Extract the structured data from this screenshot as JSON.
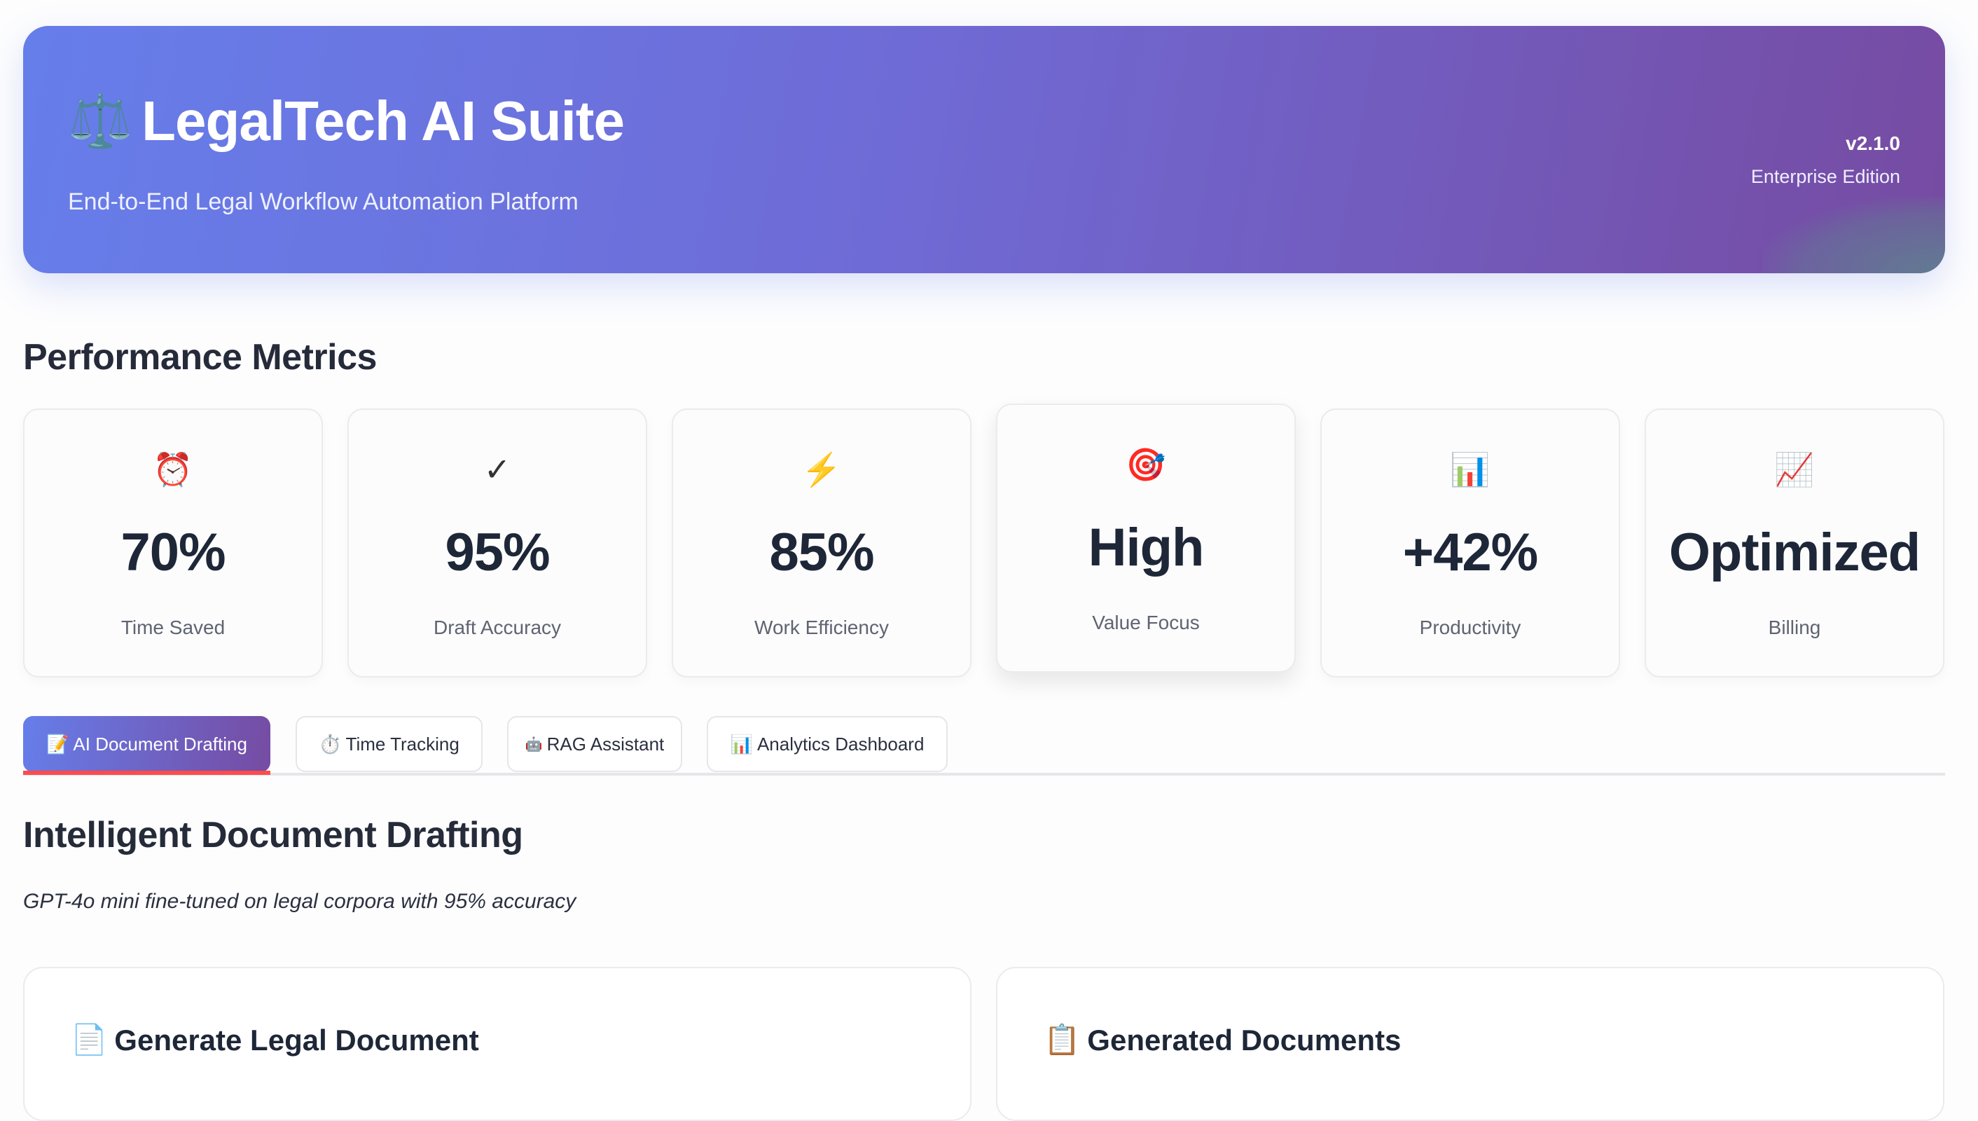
{
  "header": {
    "icon": "balance-scale-icon",
    "title_emoji": "⚖️",
    "title": "LegalTech AI Suite",
    "subtitle": "End-to-End Legal Workflow Automation Platform",
    "version": "v2.1.0",
    "edition": "Enterprise Edition",
    "gradient": [
      "#667eea",
      "#764ba2"
    ]
  },
  "metrics": {
    "title": "Performance Metrics",
    "cards": [
      {
        "icon": "alarm-clock-icon",
        "emoji": "⏰",
        "value": "70%",
        "label": "Time Saved"
      },
      {
        "icon": "checkmark-icon",
        "emoji": "✓",
        "value": "95%",
        "label": "Draft Accuracy"
      },
      {
        "icon": "lightning-icon",
        "emoji": "⚡",
        "value": "85%",
        "label": "Work Efficiency"
      },
      {
        "icon": "target-icon",
        "emoji": "🎯",
        "value": "High",
        "label": "Value Focus"
      },
      {
        "icon": "bar-chart-icon",
        "emoji": "📊",
        "value": "+42%",
        "label": "Productivity"
      },
      {
        "icon": "trend-up-icon",
        "emoji": "📈",
        "value": "Optimized",
        "label": "Billing"
      }
    ]
  },
  "tabs": [
    {
      "emoji": "📝",
      "label": "AI Document Drafting",
      "active": true
    },
    {
      "emoji": "⏱️",
      "label": "Time Tracking",
      "active": false
    },
    {
      "emoji": "🤖",
      "label": "RAG Assistant",
      "active": false
    },
    {
      "emoji": "📊",
      "label": "Analytics Dashboard",
      "active": false
    }
  ],
  "accent_underline": "#ff4b4b",
  "main": {
    "title": "Intelligent Document Drafting",
    "lead": "GPT-4o mini fine-tuned on legal corpora with 95% accuracy",
    "panels": [
      {
        "emoji": "📄",
        "title": "Generate Legal Document"
      },
      {
        "emoji": "📋",
        "title": "Generated Documents"
      }
    ]
  }
}
